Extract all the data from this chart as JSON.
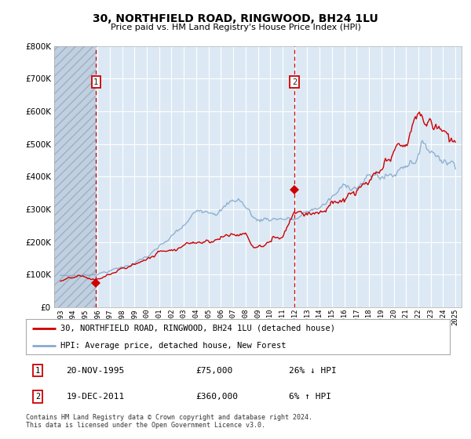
{
  "title": "30, NORTHFIELD ROAD, RINGWOOD, BH24 1LU",
  "subtitle": "Price paid vs. HM Land Registry's House Price Index (HPI)",
  "legend_line1": "30, NORTHFIELD ROAD, RINGWOOD, BH24 1LU (detached house)",
  "legend_line2": "HPI: Average price, detached house, New Forest",
  "footnote": "Contains HM Land Registry data © Crown copyright and database right 2024.\nThis data is licensed under the Open Government Licence v3.0.",
  "transaction1_date": "20-NOV-1995",
  "transaction1_price": "£75,000",
  "transaction1_hpi": "26% ↓ HPI",
  "transaction1_year": 1995.89,
  "transaction1_value": 75000,
  "transaction2_date": "19-DEC-2011",
  "transaction2_price": "£360,000",
  "transaction2_hpi": "6% ↑ HPI",
  "transaction2_year": 2011.96,
  "transaction2_value": 360000,
  "ylim": [
    0,
    800000
  ],
  "yticks": [
    0,
    100000,
    200000,
    300000,
    400000,
    500000,
    600000,
    700000,
    800000
  ],
  "ytick_labels": [
    "£0",
    "£100K",
    "£200K",
    "£300K",
    "£400K",
    "£500K",
    "£600K",
    "£700K",
    "£800K"
  ],
  "bg_color": "#dce9f5",
  "hatch_color": "#c0d0e0",
  "grid_color": "#ffffff",
  "red_color": "#cc0000",
  "blue_color": "#88aacc",
  "xlim_left": 1992.5,
  "xlim_right": 2025.5,
  "xtick_years": [
    1993,
    1994,
    1995,
    1996,
    1997,
    1998,
    1999,
    2000,
    2001,
    2002,
    2003,
    2004,
    2005,
    2006,
    2007,
    2008,
    2009,
    2010,
    2011,
    2012,
    2013,
    2014,
    2015,
    2016,
    2017,
    2018,
    2019,
    2020,
    2021,
    2022,
    2023,
    2024,
    2025
  ]
}
